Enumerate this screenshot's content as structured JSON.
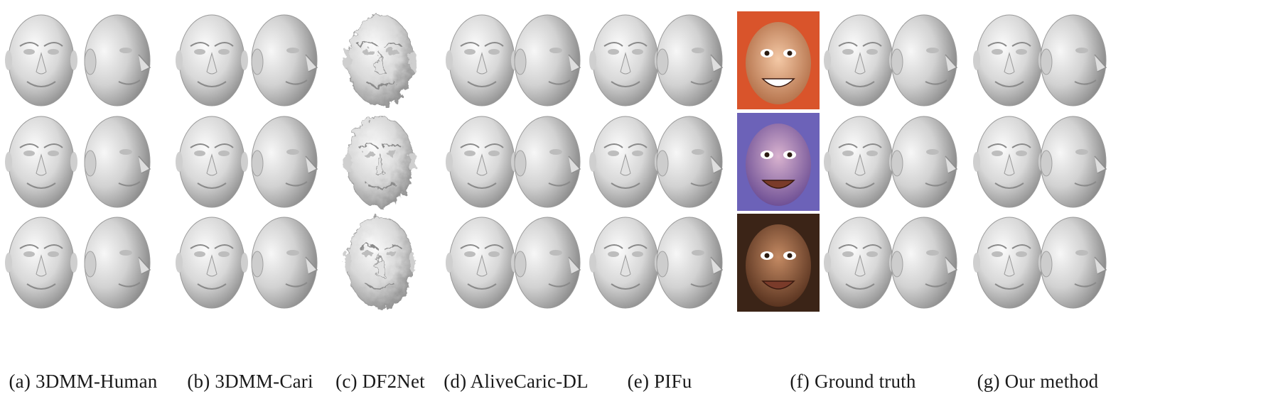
{
  "figure": {
    "panels": [
      {
        "id": "a",
        "caption": "(a) 3DMM-Human",
        "style": "smooth"
      },
      {
        "id": "b",
        "caption": "(b) 3DMM-Cari",
        "style": "smooth"
      },
      {
        "id": "c",
        "caption": "(c) DF2Net",
        "style": "noisy"
      },
      {
        "id": "d",
        "caption": "(d) AliveCaric-DL",
        "style": "smooth"
      },
      {
        "id": "e",
        "caption": "(e) PIFu",
        "style": "smooth"
      },
      {
        "id": "f",
        "caption": "(f) Ground truth",
        "style": "smooth"
      },
      {
        "id": "g",
        "caption": "(g) Our method",
        "style": "smooth"
      }
    ],
    "colors": {
      "mesh_light": "#f4f4f4",
      "mesh_mid": "#cfcfcf",
      "mesh_dark": "#8c8c8c",
      "photo_1_bg": "#d9542b",
      "photo_2_bg": "#6c62b8",
      "photo_3_bg": "#3b2417"
    }
  }
}
